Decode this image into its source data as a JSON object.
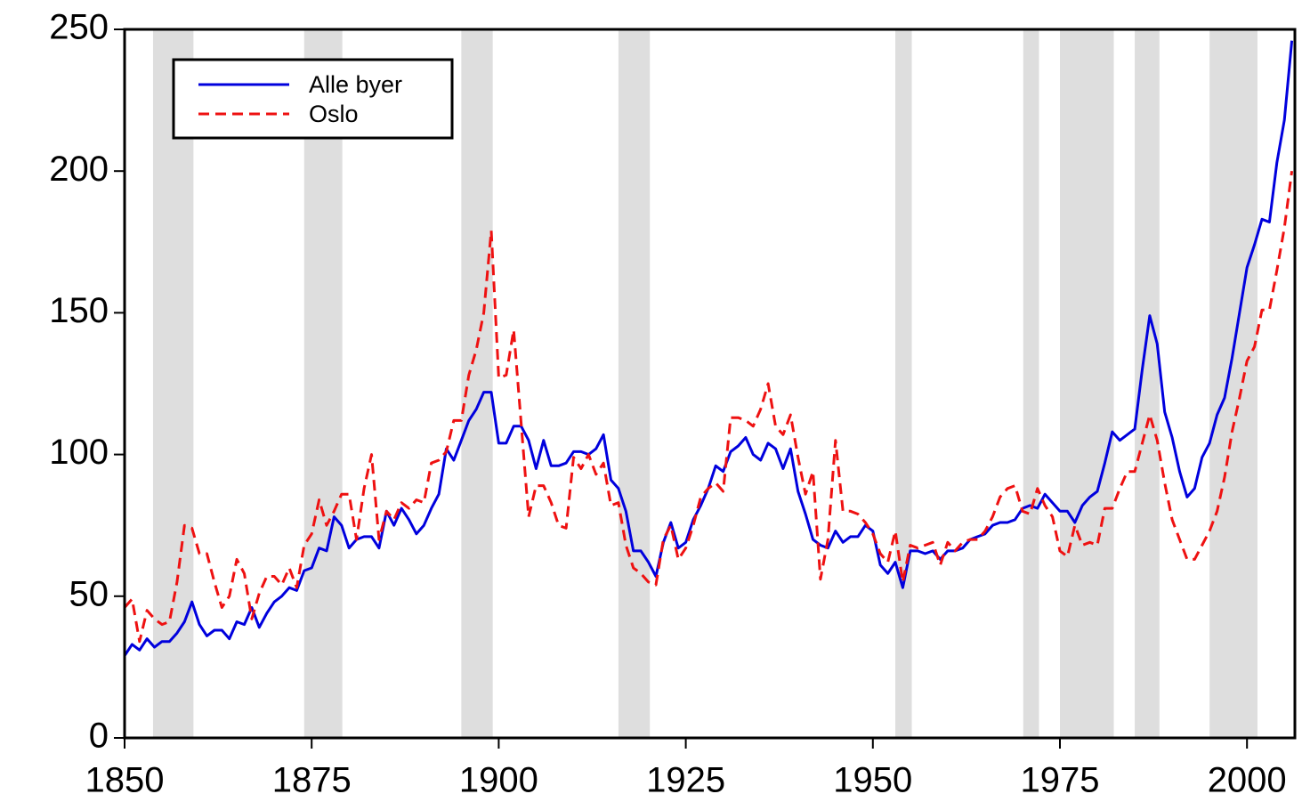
{
  "chart_data": {
    "type": "line",
    "x": [
      1850,
      1851,
      1852,
      1853,
      1854,
      1855,
      1856,
      1857,
      1858,
      1859,
      1860,
      1861,
      1862,
      1863,
      1864,
      1865,
      1866,
      1867,
      1868,
      1869,
      1870,
      1871,
      1872,
      1873,
      1874,
      1875,
      1876,
      1877,
      1878,
      1879,
      1880,
      1881,
      1882,
      1883,
      1884,
      1885,
      1886,
      1887,
      1888,
      1889,
      1890,
      1891,
      1892,
      1893,
      1894,
      1895,
      1896,
      1897,
      1898,
      1899,
      1900,
      1901,
      1902,
      1903,
      1904,
      1905,
      1906,
      1907,
      1908,
      1909,
      1910,
      1911,
      1912,
      1913,
      1914,
      1915,
      1916,
      1917,
      1918,
      1919,
      1920,
      1921,
      1922,
      1923,
      1924,
      1925,
      1926,
      1927,
      1928,
      1929,
      1930,
      1931,
      1932,
      1933,
      1934,
      1935,
      1936,
      1937,
      1938,
      1939,
      1940,
      1941,
      1942,
      1943,
      1944,
      1945,
      1946,
      1947,
      1948,
      1949,
      1950,
      1951,
      1952,
      1953,
      1954,
      1955,
      1956,
      1957,
      1958,
      1959,
      1960,
      1961,
      1962,
      1963,
      1964,
      1965,
      1966,
      1967,
      1968,
      1969,
      1970,
      1971,
      1972,
      1973,
      1974,
      1975,
      1976,
      1977,
      1978,
      1979,
      1980,
      1981,
      1982,
      1983,
      1984,
      1985,
      1986,
      1987,
      1988,
      1989,
      1990,
      1991,
      1992,
      1993,
      1994,
      1995,
      1996,
      1997,
      1998,
      1999,
      2000,
      2001,
      2002,
      2003,
      2004,
      2005,
      2006
    ],
    "series": [
      {
        "name": "Alle byer",
        "color": "#0000dd",
        "dash": "solid",
        "values": [
          29,
          33,
          31,
          35,
          32,
          34,
          34,
          37,
          41,
          48,
          40,
          36,
          38,
          38,
          35,
          41,
          40,
          46,
          39,
          44,
          48,
          50,
          53,
          52,
          59,
          60,
          67,
          66,
          78,
          75,
          67,
          70,
          71,
          71,
          67,
          80,
          75,
          81,
          77,
          72,
          75,
          81,
          86,
          102,
          98,
          105,
          112,
          116,
          122,
          122,
          104,
          104,
          110,
          110,
          105,
          95,
          105,
          96,
          96,
          97,
          101,
          101,
          100,
          102,
          107,
          91,
          88,
          80,
          66,
          66,
          62,
          57,
          69,
          76,
          67,
          69,
          77,
          82,
          88,
          96,
          94,
          101,
          103,
          106,
          100,
          98,
          104,
          102,
          95,
          102,
          87,
          79,
          70,
          68,
          67,
          73,
          69,
          71,
          71,
          75,
          73,
          61,
          58,
          62,
          53,
          66,
          66,
          65,
          66,
          63,
          66,
          66,
          67,
          70,
          71,
          72,
          75,
          76,
          76,
          77,
          81,
          82,
          81,
          86,
          83,
          80,
          80,
          76,
          82,
          85,
          87,
          97,
          108,
          105,
          107,
          109,
          130,
          149,
          139,
          115,
          106,
          94,
          85,
          88,
          99,
          104,
          114,
          120,
          134,
          150,
          166,
          174,
          183,
          182,
          203,
          218,
          246
        ]
      },
      {
        "name": "Oslo",
        "color": "#ee1111",
        "dash": "dashed",
        "values": [
          46,
          49,
          34,
          45,
          42,
          40,
          41,
          55,
          75,
          74,
          65,
          65,
          55,
          46,
          50,
          63,
          58,
          42,
          51,
          57,
          57,
          54,
          60,
          53,
          68,
          72,
          84,
          75,
          80,
          86,
          86,
          70,
          88,
          100,
          70,
          80,
          77,
          83,
          81,
          84,
          83,
          97,
          98,
          101,
          112,
          112,
          128,
          137,
          150,
          179,
          127,
          128,
          144,
          111,
          78,
          89,
          89,
          83,
          75,
          74,
          99,
          95,
          100,
          93,
          97,
          82,
          83,
          68,
          60,
          58,
          55,
          54,
          70,
          75,
          63,
          67,
          75,
          85,
          88,
          90,
          87,
          113,
          113,
          112,
          110,
          116,
          125,
          110,
          107,
          114,
          99,
          86,
          94,
          56,
          70,
          105,
          80,
          80,
          79,
          76,
          72,
          65,
          62,
          73,
          55,
          68,
          67,
          68,
          69,
          61,
          69,
          66,
          69,
          70,
          70,
          73,
          78,
          85,
          88,
          89,
          80,
          79,
          88,
          82,
          78,
          66,
          64,
          75,
          68,
          69,
          68,
          81,
          81,
          88,
          94,
          94,
          104,
          114,
          105,
          90,
          77,
          70,
          63,
          63,
          68,
          73,
          80,
          92,
          108,
          120,
          133,
          138,
          151,
          151,
          165,
          180,
          200
        ]
      }
    ],
    "shaded_periods": [
      [
        1853.8,
        1859.2
      ],
      [
        1874,
        1879.1
      ],
      [
        1895,
        1899.2
      ],
      [
        1916,
        1920.2
      ],
      [
        1953,
        1955.2
      ],
      [
        1970.1,
        1972.2
      ],
      [
        1975,
        1982.2
      ],
      [
        1985,
        1988.3
      ],
      [
        1995,
        2001.4
      ]
    ],
    "shade_color": "#dedede",
    "xlim": [
      1850,
      2006.4
    ],
    "xticks": [
      1850,
      1875,
      1900,
      1925,
      1950,
      1975,
      2000
    ],
    "ylim": [
      0,
      250
    ],
    "yticks": [
      0,
      50,
      100,
      150,
      200,
      250
    ],
    "legend": "upper left"
  }
}
